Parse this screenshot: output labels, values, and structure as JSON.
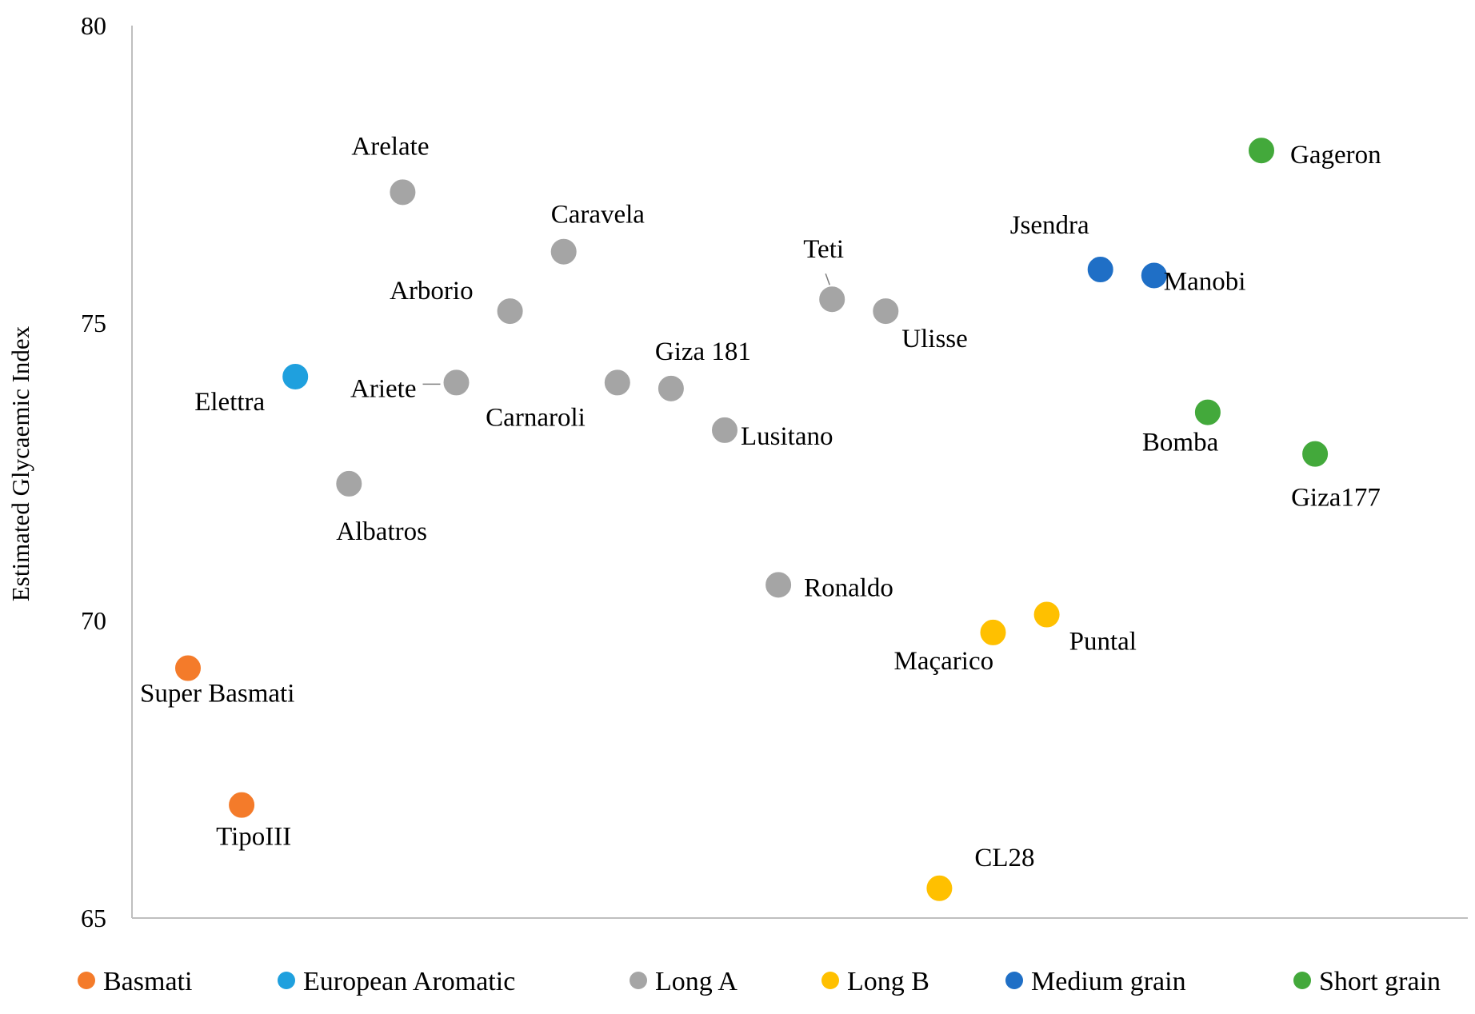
{
  "chart_data": {
    "type": "scatter",
    "title": "",
    "xlabel": "",
    "ylabel": "Estimated Glycaemic Index",
    "xlim": [
      0,
      25
    ],
    "ylim": [
      65,
      80
    ],
    "yticks": [
      65,
      70,
      75,
      80
    ],
    "grid": false,
    "legend_position": "bottom",
    "series": [
      {
        "name": "Basmati",
        "color": "#F47B2A",
        "points": [
          {
            "label": "Super Basmati",
            "x": 1,
            "y": 69.2
          },
          {
            "label": "TipoIII",
            "x": 2,
            "y": 66.9
          }
        ]
      },
      {
        "name": "European Aromatic",
        "color": "#1FA0DE",
        "points": [
          {
            "label": "Elettra",
            "x": 3,
            "y": 74.1
          }
        ]
      },
      {
        "name": "Long A",
        "color": "#A5A5A5",
        "points": [
          {
            "label": "Albatros",
            "x": 4,
            "y": 72.3
          },
          {
            "label": "Arelate",
            "x": 5,
            "y": 77.2
          },
          {
            "label": "Ariete",
            "x": 6,
            "y": 74.0
          },
          {
            "label": "Arborio",
            "x": 7,
            "y": 75.2
          },
          {
            "label": "Caravela",
            "x": 8,
            "y": 76.2
          },
          {
            "label": "Carnaroli",
            "x": 9,
            "y": 74.0
          },
          {
            "label": "Giza 181",
            "x": 10,
            "y": 73.9
          },
          {
            "label": "Lusitano",
            "x": 11,
            "y": 73.2
          },
          {
            "label": "Ronaldo",
            "x": 12,
            "y": 70.6
          },
          {
            "label": "Teti",
            "x": 13,
            "y": 75.4
          },
          {
            "label": "Ulisse",
            "x": 14,
            "y": 75.2
          }
        ]
      },
      {
        "name": "Long B",
        "color": "#FFC000",
        "points": [
          {
            "label": "CL28",
            "x": 15,
            "y": 65.5
          },
          {
            "label": "Maçarico",
            "x": 16,
            "y": 69.8
          },
          {
            "label": "Puntal",
            "x": 17,
            "y": 70.1
          }
        ]
      },
      {
        "name": "Medium grain",
        "color": "#1F6FC6",
        "points": [
          {
            "label": "Jsendra",
            "x": 18,
            "y": 75.9
          },
          {
            "label": "Manobi",
            "x": 19,
            "y": 75.8
          }
        ]
      },
      {
        "name": "Short grain",
        "color": "#43A93B",
        "points": [
          {
            "label": "Bomba",
            "x": 20,
            "y": 73.5
          },
          {
            "label": "Gageron",
            "x": 21,
            "y": 77.9
          },
          {
            "label": "Giza177",
            "x": 22,
            "y": 72.8
          }
        ]
      }
    ]
  }
}
